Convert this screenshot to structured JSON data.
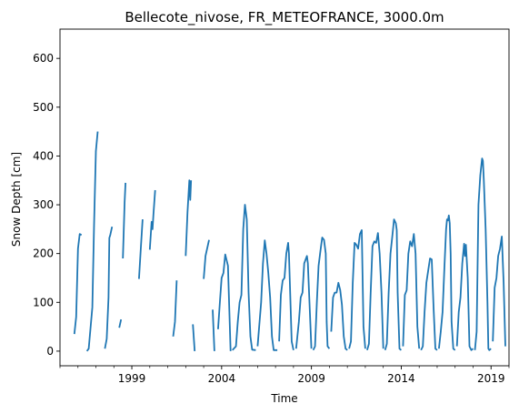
{
  "chart_data": {
    "type": "line",
    "title": "Bellecote_nivose, FR_METEOFRANCE, 3000.0m",
    "xlabel": "Time",
    "ylabel": "Snow Depth [cm]",
    "xlim": [
      1995.0,
      2020.0
    ],
    "ylim": [
      -30,
      660
    ],
    "xticks": [
      1999,
      2004,
      2009,
      2014,
      2019
    ],
    "xtick_labels": [
      "1999",
      "2004",
      "2009",
      "2014",
      "2019"
    ],
    "yticks": [
      0,
      100,
      200,
      300,
      400,
      500,
      600
    ],
    "ytick_labels": [
      "0",
      "100",
      "200",
      "300",
      "400",
      "500",
      "600"
    ],
    "grid": false,
    "colors": {
      "line": "#1f77b4"
    },
    "series": [
      {
        "segments": [
          [
            [
              1995.8,
              35
            ],
            [
              1995.9,
              70
            ],
            [
              1996.0,
              210
            ],
            [
              1996.1,
              240
            ],
            [
              1996.2,
              238
            ]
          ],
          [
            [
              1996.5,
              0
            ],
            [
              1996.6,
              5
            ],
            [
              1996.8,
              90
            ],
            [
              1996.9,
              260
            ],
            [
              1997.0,
              410
            ],
            [
              1997.1,
              450
            ]
          ],
          [
            [
              1997.5,
              5
            ],
            [
              1997.6,
              25
            ],
            [
              1997.7,
              110
            ],
            [
              1997.75,
              232
            ],
            [
              1997.8,
              238
            ],
            [
              1997.9,
              255
            ]
          ],
          [
            [
              1998.3,
              48
            ],
            [
              1998.4,
              65
            ]
          ],
          [
            [
              1998.5,
              190
            ],
            [
              1998.6,
              305
            ],
            [
              1998.65,
              345
            ]
          ],
          [
            [
              1999.4,
              148
            ],
            [
              1999.5,
              210
            ],
            [
              1999.6,
              270
            ]
          ],
          [
            [
              2000.0,
              208
            ],
            [
              2000.1,
              265
            ],
            [
              2000.15,
              250
            ],
            [
              2000.2,
              280
            ],
            [
              2000.3,
              330
            ]
          ],
          [
            [
              2001.3,
              30
            ],
            [
              2001.4,
              60
            ],
            [
              2001.5,
              145
            ]
          ],
          [
            [
              2002.0,
              195
            ],
            [
              2002.1,
              285
            ],
            [
              2002.2,
              350
            ],
            [
              2002.25,
              310
            ],
            [
              2002.3,
              350
            ]
          ],
          [
            [
              2002.4,
              55
            ],
            [
              2002.5,
              0
            ]
          ],
          [
            [
              2003.0,
              148
            ],
            [
              2003.1,
              195
            ],
            [
              2003.3,
              228
            ]
          ],
          [
            [
              2003.5,
              85
            ],
            [
              2003.6,
              0
            ]
          ],
          [
            [
              2003.8,
              45
            ],
            [
              2003.9,
              100
            ],
            [
              2004.0,
              150
            ],
            [
              2004.1,
              160
            ],
            [
              2004.2,
              198
            ],
            [
              2004.35,
              175
            ],
            [
              2004.5,
              0
            ]
          ],
          [
            [
              2004.6,
              2
            ],
            [
              2004.8,
              10
            ],
            [
              2004.9,
              60
            ],
            [
              2005.0,
              100
            ],
            [
              2005.1,
              115
            ],
            [
              2005.2,
              250
            ],
            [
              2005.3,
              300
            ],
            [
              2005.4,
              270
            ],
            [
              2005.5,
              120
            ],
            [
              2005.6,
              30
            ],
            [
              2005.7,
              3
            ],
            [
              2005.9,
              2
            ]
          ],
          [
            [
              2006.0,
              10
            ],
            [
              2006.2,
              100
            ],
            [
              2006.3,
              180
            ],
            [
              2006.4,
              227
            ],
            [
              2006.5,
              200
            ],
            [
              2006.6,
              160
            ],
            [
              2006.7,
              110
            ],
            [
              2006.8,
              30
            ],
            [
              2006.9,
              2
            ],
            [
              2007.1,
              2
            ]
          ],
          [
            [
              2007.2,
              20
            ],
            [
              2007.3,
              115
            ],
            [
              2007.4,
              145
            ],
            [
              2007.5,
              150
            ],
            [
              2007.6,
              200
            ],
            [
              2007.7,
              222
            ],
            [
              2007.75,
              200
            ],
            [
              2007.8,
              140
            ],
            [
              2007.9,
              20
            ],
            [
              2008.0,
              2
            ]
          ],
          [
            [
              2008.15,
              5
            ],
            [
              2008.3,
              60
            ],
            [
              2008.4,
              110
            ],
            [
              2008.5,
              120
            ],
            [
              2008.6,
              180
            ],
            [
              2008.7,
              190
            ],
            [
              2008.75,
              195
            ],
            [
              2008.8,
              180
            ],
            [
              2008.9,
              90
            ],
            [
              2009.0,
              5
            ]
          ],
          [
            [
              2009.1,
              2
            ],
            [
              2009.2,
              10
            ],
            [
              2009.3,
              100
            ],
            [
              2009.4,
              175
            ],
            [
              2009.5,
              205
            ],
            [
              2009.6,
              233
            ],
            [
              2009.7,
              228
            ],
            [
              2009.8,
              200
            ],
            [
              2009.85,
              60
            ],
            [
              2009.9,
              10
            ],
            [
              2010.0,
              5
            ]
          ],
          [
            [
              2010.1,
              40
            ],
            [
              2010.2,
              110
            ],
            [
              2010.3,
              120
            ],
            [
              2010.4,
              120
            ],
            [
              2010.5,
              140
            ],
            [
              2010.6,
              125
            ],
            [
              2010.7,
              95
            ],
            [
              2010.8,
              30
            ],
            [
              2010.9,
              5
            ],
            [
              2011.0,
              2
            ]
          ],
          [
            [
              2011.1,
              5
            ],
            [
              2011.2,
              20
            ],
            [
              2011.3,
              140
            ],
            [
              2011.4,
              222
            ],
            [
              2011.5,
              218
            ],
            [
              2011.6,
              210
            ],
            [
              2011.7,
              240
            ],
            [
              2011.8,
              248
            ],
            [
              2011.9,
              50
            ],
            [
              2012.0,
              5
            ]
          ],
          [
            [
              2012.1,
              2
            ],
            [
              2012.2,
              15
            ],
            [
              2012.3,
              120
            ],
            [
              2012.4,
              215
            ],
            [
              2012.5,
              225
            ],
            [
              2012.6,
              222
            ],
            [
              2012.7,
              242
            ],
            [
              2012.8,
              200
            ],
            [
              2012.9,
              120
            ],
            [
              2013.0,
              5
            ]
          ],
          [
            [
              2013.1,
              2
            ],
            [
              2013.2,
              15
            ],
            [
              2013.3,
              120
            ],
            [
              2013.4,
              200
            ],
            [
              2013.5,
              235
            ],
            [
              2013.6,
              270
            ],
            [
              2013.7,
              262
            ],
            [
              2013.75,
              248
            ],
            [
              2013.8,
              120
            ],
            [
              2013.9,
              5
            ],
            [
              2014.0,
              2
            ]
          ],
          [
            [
              2014.1,
              10
            ],
            [
              2014.2,
              115
            ],
            [
              2014.3,
              125
            ],
            [
              2014.4,
              200
            ],
            [
              2014.5,
              225
            ],
            [
              2014.6,
              215
            ],
            [
              2014.7,
              240
            ],
            [
              2014.8,
              200
            ],
            [
              2014.9,
              50
            ],
            [
              2015.0,
              5
            ]
          ],
          [
            [
              2015.1,
              2
            ],
            [
              2015.2,
              10
            ],
            [
              2015.3,
              80
            ],
            [
              2015.4,
              140
            ],
            [
              2015.5,
              165
            ],
            [
              2015.6,
              190
            ],
            [
              2015.7,
              188
            ],
            [
              2015.8,
              90
            ],
            [
              2015.9,
              5
            ],
            [
              2016.0,
              2
            ]
          ],
          [
            [
              2016.1,
              5
            ],
            [
              2016.2,
              40
            ],
            [
              2016.3,
              80
            ],
            [
              2016.4,
              170
            ],
            [
              2016.5,
              250
            ],
            [
              2016.55,
              270
            ],
            [
              2016.6,
              268
            ],
            [
              2016.65,
              278
            ],
            [
              2016.7,
              262
            ],
            [
              2016.75,
              200
            ],
            [
              2016.8,
              60
            ],
            [
              2016.9,
              5
            ],
            [
              2017.0,
              2
            ]
          ],
          [
            [
              2017.1,
              10
            ],
            [
              2017.2,
              80
            ],
            [
              2017.3,
              110
            ],
            [
              2017.4,
              180
            ],
            [
              2017.5,
              220
            ],
            [
              2017.55,
              195
            ],
            [
              2017.6,
              218
            ],
            [
              2017.7,
              150
            ],
            [
              2017.8,
              10
            ],
            [
              2017.9,
              2
            ],
            [
              2018.0,
              5
            ]
          ],
          [
            [
              2018.1,
              2
            ],
            [
              2018.2,
              40
            ],
            [
              2018.3,
              300
            ],
            [
              2018.4,
              360
            ],
            [
              2018.5,
              395
            ],
            [
              2018.55,
              390
            ],
            [
              2018.6,
              350
            ],
            [
              2018.7,
              250
            ],
            [
              2018.8,
              100
            ],
            [
              2018.85,
              5
            ],
            [
              2018.9,
              2
            ],
            [
              2019.0,
              5
            ]
          ],
          [
            [
              2019.1,
              20
            ],
            [
              2019.2,
              130
            ],
            [
              2019.3,
              150
            ],
            [
              2019.4,
              195
            ],
            [
              2019.5,
              210
            ],
            [
              2019.6,
              235
            ],
            [
              2019.7,
              140
            ],
            [
              2019.8,
              10
            ]
          ]
        ]
      }
    ]
  }
}
